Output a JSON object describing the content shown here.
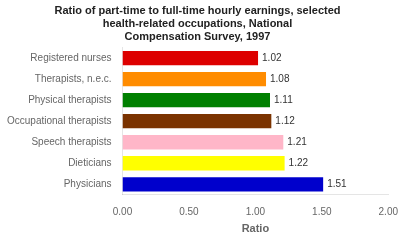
{
  "chart_data": {
    "type": "bar",
    "orientation": "horizontal",
    "title": "Ratio of part-time to full-time hourly earnings, selected\nhealth-related occupations, National\nCompensation Survey, 1997",
    "categories": [
      "Registered nurses",
      "Therapists, n.e.c.",
      "Physical therapists",
      "Occupational therapists",
      "Speech therapists",
      "Dieticians",
      "Physicians"
    ],
    "values": [
      1.02,
      1.08,
      1.11,
      1.12,
      1.21,
      1.22,
      1.51
    ],
    "colors": [
      "#dd0000",
      "#ff8c00",
      "#008000",
      "#7b3300",
      "#ffb6c8",
      "#ffff00",
      "#0000cc"
    ],
    "xlabel": "Ratio",
    "xlim": [
      0.0,
      2.0
    ],
    "xticks": [
      {
        "value": 0.0,
        "label": "0.00"
      },
      {
        "value": 0.5,
        "label": "0.50"
      },
      {
        "value": 1.0,
        "label": "1.00"
      },
      {
        "value": 1.5,
        "label": "1.50"
      },
      {
        "value": 2.0,
        "label": "2.00"
      }
    ],
    "data_labels": true,
    "grid": false
  }
}
